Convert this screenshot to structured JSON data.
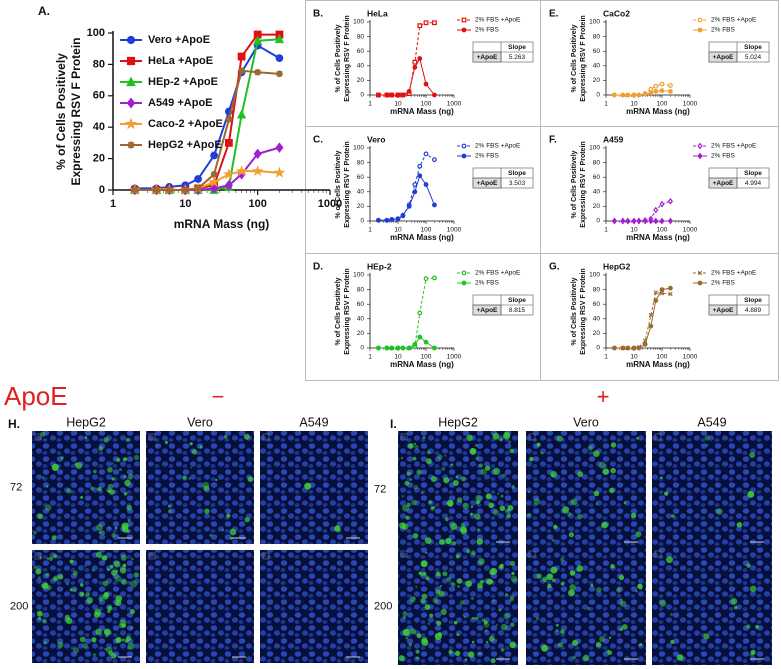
{
  "chart_data": [
    {
      "type": "line",
      "panel": "A.",
      "xlabel": "mRNA Mass (ng)",
      "ylabel": [
        "% of Cells Positively",
        "Expressing RSV F Protein"
      ],
      "xscale": "log",
      "x": [
        2,
        4,
        6,
        10,
        15,
        25,
        40,
        60,
        100,
        200
      ],
      "xlim": [
        1,
        1000
      ],
      "xticks": [
        1,
        10,
        100,
        1000
      ],
      "ylim": [
        0,
        100
      ],
      "yticks": [
        0,
        20,
        40,
        60,
        80,
        100
      ],
      "legend": "upper left",
      "series": [
        {
          "name": "Vero +ApoE",
          "color": "#1f3fd6",
          "marker": "circle",
          "values": [
            1,
            1,
            2,
            3,
            7,
            22,
            50,
            75,
            92,
            84
          ]
        },
        {
          "name": "HeLa +ApoE",
          "color": "#e01010",
          "marker": "square",
          "values": [
            0,
            0,
            0,
            0,
            1,
            3,
            30,
            85,
            99,
            99
          ]
        },
        {
          "name": "HEp-2 +ApoE",
          "color": "#22c022",
          "marker": "triangle",
          "values": [
            0,
            0,
            0,
            0,
            0,
            0,
            2,
            48,
            95,
            96
          ]
        },
        {
          "name": "A549 +ApoE",
          "color": "#a020d0",
          "marker": "diamond",
          "values": [
            0,
            0,
            0,
            0,
            0,
            1,
            3,
            10,
            23,
            27
          ]
        },
        {
          "name": "Caco-2 +ApoE",
          "color": "#f0a030",
          "marker": "star",
          "values": [
            0,
            0,
            0,
            0,
            1,
            5,
            10,
            12,
            12,
            11
          ]
        },
        {
          "name": "HepG2 +ApoE",
          "color": "#9a6a30",
          "marker": "asterisk",
          "values": [
            0,
            0,
            0,
            0,
            1,
            10,
            45,
            76,
            75,
            74
          ]
        }
      ]
    },
    {
      "type": "line",
      "panel": "B.",
      "title": "HeLa",
      "xlabel": "mRNA Mass (ng)",
      "ylabel": [
        "% of Cells Positively",
        "Expressing RSV F Protein"
      ],
      "xscale": "log",
      "x": [
        2,
        4,
        6,
        10,
        15,
        25,
        40,
        60,
        100,
        200
      ],
      "xlim": [
        1,
        1000
      ],
      "xticks": [
        1,
        10,
        100,
        1000
      ],
      "ylim": [
        0,
        100
      ],
      "yticks": [
        0,
        20,
        40,
        60,
        80,
        100
      ],
      "series": [
        {
          "name": "2% FBS +ApoE",
          "color": "#e01010",
          "marker": "square",
          "style": "dashed",
          "values": [
            0,
            0,
            0,
            0,
            0,
            2,
            45,
            95,
            99,
            99
          ]
        },
        {
          "name": "2% FBS",
          "color": "#e01010",
          "marker": "circle",
          "style": "solid",
          "values": [
            0,
            0,
            0,
            0,
            0,
            5,
            38,
            50,
            15,
            0
          ]
        }
      ],
      "slope_table": {
        "header": "Slope",
        "row": "+ApoE",
        "value": 5.263
      }
    },
    {
      "type": "line",
      "panel": "C.",
      "title": "Vero",
      "xlabel": "mRNA Mass (ng)",
      "ylabel": [
        "% of Cells Positively",
        "Expressing RSV F Protein"
      ],
      "xscale": "log",
      "x": [
        2,
        4,
        6,
        10,
        15,
        25,
        40,
        60,
        100,
        200
      ],
      "xlim": [
        1,
        1000
      ],
      "xticks": [
        1,
        10,
        100,
        1000
      ],
      "ylim": [
        0,
        100
      ],
      "yticks": [
        0,
        20,
        40,
        60,
        80,
        100
      ],
      "series": [
        {
          "name": "2% FBS +ApoE",
          "color": "#1f3fd6",
          "marker": "circle",
          "style": "dashed",
          "values": [
            1,
            1,
            2,
            3,
            7,
            22,
            50,
            75,
            92,
            84
          ]
        },
        {
          "name": "2% FBS",
          "color": "#1f3fd6",
          "marker": "circle",
          "style": "solid",
          "values": [
            1,
            1,
            2,
            3,
            8,
            20,
            40,
            62,
            50,
            22
          ]
        }
      ],
      "slope_table": {
        "header": "Slope",
        "row": "+ApoE",
        "value": 3.503
      }
    },
    {
      "type": "line",
      "panel": "D.",
      "title": "HEp-2",
      "xlabel": "mRNA Mass (ng)",
      "ylabel": [
        "% of Cells Positively",
        "Expressing RSV F Protein"
      ],
      "xscale": "log",
      "x": [
        2,
        4,
        6,
        10,
        15,
        25,
        40,
        60,
        100,
        200
      ],
      "xlim": [
        1,
        1000
      ],
      "xticks": [
        1,
        10,
        100,
        1000
      ],
      "ylim": [
        0,
        100
      ],
      "yticks": [
        0,
        20,
        40,
        60,
        80,
        100
      ],
      "series": [
        {
          "name": "2% FBS +ApoE",
          "color": "#22c022",
          "marker": "circle",
          "style": "dashed",
          "values": [
            0,
            0,
            0,
            0,
            0,
            0,
            2,
            48,
            95,
            96
          ]
        },
        {
          "name": "2% FBS",
          "color": "#22c022",
          "marker": "circle",
          "style": "solid",
          "values": [
            0,
            0,
            0,
            0,
            0,
            0,
            5,
            15,
            8,
            0
          ]
        }
      ],
      "slope_table": {
        "header": "Slope",
        "row": "+ApoE",
        "value": 8.815
      }
    },
    {
      "type": "line",
      "panel": "E.",
      "title": "CaCo2",
      "xlabel": "mRNA Mass (ng)",
      "ylabel": [
        "% of Cells Positively",
        "Expressing RSV F Protein"
      ],
      "xscale": "log",
      "x": [
        2,
        4,
        6,
        10,
        15,
        25,
        40,
        60,
        100,
        200
      ],
      "xlim": [
        1,
        1000
      ],
      "xticks": [
        1,
        10,
        100,
        1000
      ],
      "ylim": [
        0,
        100
      ],
      "yticks": [
        0,
        20,
        40,
        60,
        80,
        100
      ],
      "series": [
        {
          "name": "2% FBS +ApoE",
          "color": "#f0a030",
          "marker": "circle",
          "style": "dashed",
          "values": [
            0,
            0,
            0,
            0,
            0,
            2,
            8,
            12,
            15,
            13
          ]
        },
        {
          "name": "2% FBS",
          "color": "#f0a030",
          "marker": "circle",
          "style": "solid",
          "values": [
            0,
            0,
            0,
            0,
            0,
            1,
            3,
            5,
            6,
            5
          ]
        }
      ],
      "slope_table": {
        "header": "Slope",
        "row": "+ApoE",
        "value": 5.024
      }
    },
    {
      "type": "line",
      "panel": "F.",
      "title": "A459",
      "xlabel": "mRNA Mass (ng)",
      "ylabel": [
        "% of Cells Positively",
        "Expressing RSV F Protein"
      ],
      "xscale": "log",
      "x": [
        2,
        4,
        6,
        10,
        15,
        25,
        40,
        60,
        100,
        200
      ],
      "xlim": [
        1,
        1000
      ],
      "xticks": [
        1,
        10,
        100,
        1000
      ],
      "ylim": [
        0,
        100
      ],
      "yticks": [
        0,
        20,
        40,
        60,
        80,
        100
      ],
      "series": [
        {
          "name": "2% FBS +ApoE",
          "color": "#a020d0",
          "marker": "diamond",
          "style": "dashed",
          "values": [
            0,
            0,
            0,
            0,
            0,
            1,
            3,
            15,
            23,
            27
          ]
        },
        {
          "name": "2% FBS",
          "color": "#a020d0",
          "marker": "diamond",
          "style": "solid",
          "values": [
            0,
            0,
            0,
            0,
            0,
            0,
            0,
            0,
            0,
            0
          ]
        }
      ],
      "slope_table": {
        "header": "Slope",
        "row": "+ApoE",
        "value": 4.994
      }
    },
    {
      "type": "line",
      "panel": "G.",
      "title": "HepG2",
      "xlabel": "mRNA Mass (ng)",
      "ylabel": [
        "% of Cells Positively",
        "Expressing RSV F Protein"
      ],
      "xscale": "log",
      "x": [
        2,
        4,
        6,
        10,
        15,
        25,
        40,
        60,
        100,
        200
      ],
      "xlim": [
        1,
        1000
      ],
      "xticks": [
        1,
        10,
        100,
        1000
      ],
      "ylim": [
        0,
        100
      ],
      "yticks": [
        0,
        20,
        40,
        60,
        80,
        100
      ],
      "series": [
        {
          "name": "2% FBS +ApoE",
          "color": "#9a6a30",
          "marker": "x",
          "style": "dashed",
          "values": [
            0,
            0,
            0,
            0,
            1,
            10,
            45,
            76,
            75,
            74
          ]
        },
        {
          "name": "2% FBS",
          "color": "#9a6a30",
          "marker": "circle",
          "style": "solid",
          "values": [
            0,
            0,
            0,
            0,
            0,
            5,
            30,
            65,
            80,
            82
          ]
        }
      ],
      "slope_table": {
        "header": "Slope",
        "row": "+ApoE",
        "value": 4.889
      }
    }
  ],
  "micrographs": {
    "label": "ApoE",
    "groups": [
      {
        "panel": "H.",
        "sign": "−",
        "columns": [
          "HepG2",
          "Vero",
          "A549"
        ],
        "rows": [
          "72",
          "200"
        ]
      },
      {
        "panel": "I.",
        "sign": "+",
        "columns": [
          "HepG2",
          "Vero",
          "A549"
        ],
        "rows": [
          "72",
          "200"
        ]
      }
    ]
  }
}
